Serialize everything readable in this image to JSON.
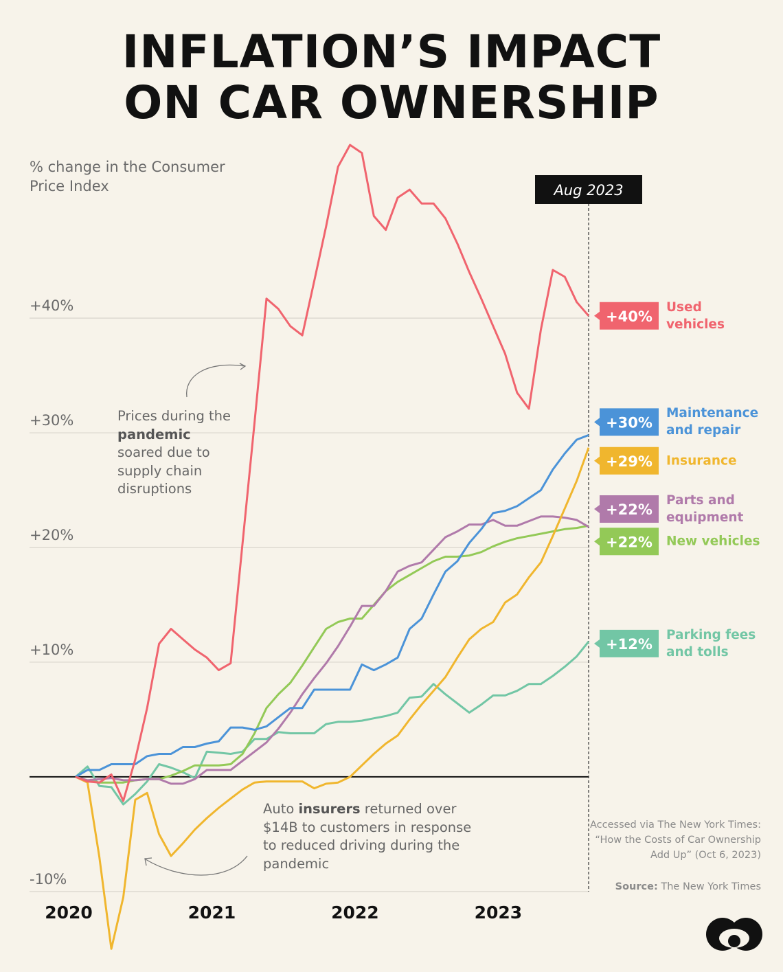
{
  "title": [
    "INFLATION’S IMPACT",
    "ON CAR OWNERSHIP"
  ],
  "chart_data": {
    "type": "line",
    "y_label": "% change in the Consumer Price Index",
    "marker_label": "Aug 2023",
    "categories": [
      "2020",
      null,
      null,
      null,
      null,
      null,
      null,
      null,
      null,
      null,
      null,
      null,
      "2021",
      null,
      null,
      null,
      null,
      null,
      null,
      null,
      null,
      null,
      null,
      null,
      "2022",
      null,
      null,
      null,
      null,
      null,
      null,
      null,
      null,
      null,
      null,
      null,
      "2023",
      null,
      null,
      null,
      null,
      null,
      null,
      null
    ],
    "ylim": [
      -16,
      56
    ],
    "yticks": [
      {
        "value": -10,
        "label": "-10%"
      },
      {
        "value": 10,
        "label": "+10%"
      },
      {
        "value": 20,
        "label": "+20%"
      },
      {
        "value": 30,
        "label": "+30%"
      },
      {
        "value": 40,
        "label": "+40%"
      }
    ],
    "grid": true,
    "series": [
      {
        "name": "Used vehicles",
        "color": "#f0646e",
        "values": [
          0,
          -0.4,
          -0.5,
          0.2,
          -2.1,
          1.5,
          6,
          11.6,
          12.9,
          12,
          11.1,
          10.4,
          9.3,
          9.9,
          20.4,
          30.9,
          41.7,
          40.8,
          39.3,
          38.5,
          43.2,
          48,
          53.2,
          55.1,
          54.4,
          48.9,
          47.7,
          50.5,
          51.2,
          50,
          50,
          48.7,
          46.5,
          44,
          41.7,
          39.3,
          36.9,
          33.5,
          32.1,
          39,
          44.2,
          43.6,
          41.4,
          40.2
        ],
        "value_labels": {
          "43": "+40%"
        }
      },
      {
        "name": "Maintenance and repair",
        "color": "#4b93d8",
        "values": [
          0,
          0.6,
          0.6,
          1.1,
          1.1,
          1.1,
          1.8,
          2,
          2,
          2.6,
          2.6,
          2.9,
          3.1,
          4.3,
          4.3,
          4.1,
          4.4,
          5.2,
          6,
          6,
          7.6,
          7.6,
          7.6,
          7.6,
          9.8,
          9.3,
          9.8,
          10.4,
          12.9,
          13.8,
          15.9,
          17.9,
          18.8,
          20.4,
          21.6,
          23,
          23.2,
          23.6,
          24.3,
          25,
          26.8,
          28.2,
          29.4,
          29.8
        ],
        "value_labels": {
          "43": "+30%"
        }
      },
      {
        "name": "Insurance",
        "color": "#f0b62e",
        "values": [
          0,
          -0.5,
          -7,
          -15,
          -10.5,
          -2,
          -1.4,
          -5,
          -6.9,
          -5.8,
          -4.6,
          -3.6,
          -2.7,
          -1.9,
          -1.1,
          -0.5,
          -0.4,
          -0.4,
          -0.4,
          -0.4,
          -1,
          -0.6,
          -0.5,
          0,
          1,
          2,
          2.9,
          3.6,
          5,
          6.3,
          7.5,
          8.7,
          10.4,
          12,
          12.9,
          13.5,
          15.2,
          15.9,
          17.4,
          18.7,
          21,
          23.4,
          25.8,
          28.7
        ],
        "value_labels": {
          "43": "+29%"
        }
      },
      {
        "name": "Parts and equipment",
        "color": "#b07aaa",
        "values": [
          0,
          -0.3,
          -0.2,
          -0.1,
          -0.3,
          -0.3,
          -0.2,
          -0.2,
          -0.6,
          -0.6,
          -0.2,
          0.6,
          0.6,
          0.6,
          1.4,
          2.2,
          3,
          4.2,
          5.6,
          7.2,
          8.6,
          9.9,
          11.4,
          13.1,
          14.9,
          14.9,
          16.2,
          17.9,
          18.4,
          18.7,
          19.8,
          20.9,
          21.4,
          22,
          22,
          22.4,
          21.9,
          21.9,
          22.3,
          22.7,
          22.7,
          22.6,
          22.4,
          21.8
        ],
        "value_labels": {
          "43": "+22%"
        }
      },
      {
        "name": "New vehicles",
        "color": "#93c957",
        "values": [
          0,
          -0.3,
          -0.5,
          -0.5,
          -0.5,
          -0.3,
          -0.2,
          -0.2,
          0.1,
          0.5,
          1,
          1,
          1,
          1.1,
          2,
          3.8,
          6,
          7.2,
          8.2,
          9.7,
          11.3,
          12.9,
          13.5,
          13.8,
          13.8,
          15,
          16.2,
          17,
          17.6,
          18.2,
          18.8,
          19.2,
          19.2,
          19.3,
          19.6,
          20.1,
          20.5,
          20.8,
          21,
          21.2,
          21.4,
          21.6,
          21.7,
          21.9
        ],
        "value_labels": {
          "43": "+22%"
        }
      },
      {
        "name": "Parking fees and tolls",
        "color": "#72c6a5",
        "values": [
          0,
          0.9,
          -0.8,
          -0.9,
          -2.4,
          -1.5,
          -0.4,
          1.1,
          0.8,
          0.4,
          -0.1,
          2.2,
          2.1,
          2,
          2.2,
          3.3,
          3.3,
          3.9,
          3.8,
          3.8,
          3.8,
          4.6,
          4.8,
          4.8,
          4.9,
          5.1,
          5.3,
          5.6,
          6.9,
          7,
          8.1,
          7.2,
          6.4,
          5.6,
          6.3,
          7.1,
          7.1,
          7.5,
          8.1,
          8.1,
          8.8,
          9.6,
          10.5,
          11.8
        ],
        "value_labels": {
          "43": "+12%"
        }
      }
    ],
    "annotations": [
      [
        "Prices during the ",
        "pandemic",
        " soared due to supply chain disruptions"
      ],
      [
        "Auto ",
        "insurers",
        " returned over $14B to customers in response to reduced driving during the pandemic"
      ]
    ]
  },
  "note": "Accessed via The New York Times: “How the Costs of Car Ownership Add Up” (Oct 6, 2023)",
  "source": [
    "Source:",
    " The New York Times"
  ]
}
